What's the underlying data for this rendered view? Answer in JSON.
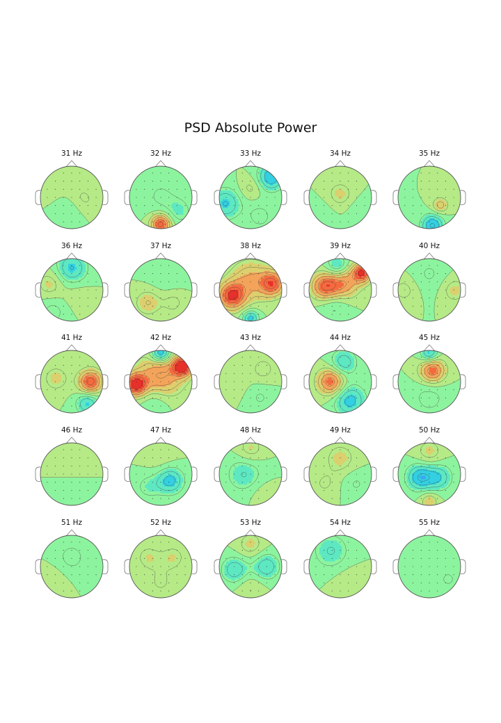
{
  "figure": {
    "title": "PSD Absolute Power"
  },
  "chart_data": {
    "type": "heatmap",
    "title": "PSD Absolute Power",
    "plot_kind": "EEG scalp topographic maps",
    "colormap": "rainbow (blue = low, green = mid, red = high)",
    "layout": {
      "rows": 5,
      "cols": 5
    },
    "value_scale": "relative 0-1 (no colorbar shown)",
    "panels": [
      {
        "label": "31 Hz",
        "freq": 31,
        "blobs": [
          {
            "x": 0.3,
            "y": -0.1,
            "v": 0.62,
            "s": 0.35
          },
          {
            "x": 0.0,
            "y": -0.35,
            "v": 0.4,
            "s": 0.35
          },
          {
            "x": -0.6,
            "y": 0.2,
            "v": 0.53,
            "s": 0.3
          }
        ]
      },
      {
        "label": "32 Hz",
        "freq": 32,
        "blobs": [
          {
            "x": 0.0,
            "y": -0.85,
            "v": 0.9,
            "s": 0.22
          },
          {
            "x": 0.0,
            "y": 0.05,
            "v": 0.42,
            "s": 0.45
          },
          {
            "x": 0.6,
            "y": -0.45,
            "v": 0.4,
            "s": 0.3
          }
        ]
      },
      {
        "label": "33 Hz",
        "freq": 33,
        "blobs": [
          {
            "x": 0.65,
            "y": 0.65,
            "v": 0.22,
            "s": 0.3
          },
          {
            "x": -0.8,
            "y": -0.2,
            "v": 0.28,
            "s": 0.35
          },
          {
            "x": 0.0,
            "y": 0.3,
            "v": 0.6,
            "s": 0.25
          },
          {
            "x": 0.3,
            "y": -0.6,
            "v": 0.4,
            "s": 0.3
          }
        ]
      },
      {
        "label": "34 Hz",
        "freq": 34,
        "blobs": [
          {
            "x": 0.0,
            "y": 0.1,
            "v": 0.62,
            "s": 0.3
          },
          {
            "x": -0.6,
            "y": -0.5,
            "v": 0.45,
            "s": 0.3
          },
          {
            "x": 0.6,
            "y": -0.4,
            "v": 0.45,
            "s": 0.3
          }
        ]
      },
      {
        "label": "35 Hz",
        "freq": 35,
        "blobs": [
          {
            "x": 0.1,
            "y": -0.9,
            "v": 0.2,
            "s": 0.25
          },
          {
            "x": 0.35,
            "y": -0.25,
            "v": 0.68,
            "s": 0.18
          }
        ]
      },
      {
        "label": "36 Hz",
        "freq": 36,
        "blobs": [
          {
            "x": 0.0,
            "y": 0.7,
            "v": 0.28,
            "s": 0.35
          },
          {
            "x": -0.7,
            "y": 0.2,
            "v": 0.62,
            "s": 0.3
          },
          {
            "x": 0.2,
            "y": -0.2,
            "v": 0.55,
            "s": 0.3
          },
          {
            "x": -0.6,
            "y": -0.7,
            "v": 0.4,
            "s": 0.3
          }
        ]
      },
      {
        "label": "37 Hz",
        "freq": 37,
        "blobs": [
          {
            "x": -0.4,
            "y": -0.4,
            "v": 0.65,
            "s": 0.3
          },
          {
            "x": 0.4,
            "y": -0.4,
            "v": 0.6,
            "s": 0.25
          },
          {
            "x": 0.1,
            "y": 0.4,
            "v": 0.45,
            "s": 0.4
          }
        ]
      },
      {
        "label": "38 Hz",
        "freq": 38,
        "blobs": [
          {
            "x": -0.6,
            "y": -0.2,
            "v": 0.92,
            "s": 0.3
          },
          {
            "x": 0.7,
            "y": 0.2,
            "v": 0.85,
            "s": 0.28
          },
          {
            "x": 0.0,
            "y": 0.3,
            "v": 0.72,
            "s": 0.45
          },
          {
            "x": 0.0,
            "y": -0.9,
            "v": 0.25,
            "s": 0.18
          }
        ]
      },
      {
        "label": "39 Hz",
        "freq": 39,
        "blobs": [
          {
            "x": -0.5,
            "y": 0.1,
            "v": 0.85,
            "s": 0.3
          },
          {
            "x": 0.7,
            "y": 0.55,
            "v": 0.92,
            "s": 0.22
          },
          {
            "x": 0.1,
            "y": 0.2,
            "v": 0.78,
            "s": 0.35
          },
          {
            "x": -0.1,
            "y": 0.75,
            "v": 0.3,
            "s": 0.25
          },
          {
            "x": -0.2,
            "y": -0.5,
            "v": 0.4,
            "s": 0.35
          }
        ]
      },
      {
        "label": "40 Hz",
        "freq": 40,
        "blobs": [
          {
            "x": -0.8,
            "y": 0.0,
            "v": 0.6,
            "s": 0.3
          },
          {
            "x": 0.8,
            "y": 0.0,
            "v": 0.62,
            "s": 0.3
          },
          {
            "x": 0.0,
            "y": 0.5,
            "v": 0.42,
            "s": 0.4
          }
        ]
      },
      {
        "label": "41 Hz",
        "freq": 41,
        "blobs": [
          {
            "x": 0.6,
            "y": 0.0,
            "v": 0.9,
            "s": 0.26
          },
          {
            "x": 0.5,
            "y": -0.7,
            "v": 0.28,
            "s": 0.25
          },
          {
            "x": -0.5,
            "y": 0.1,
            "v": 0.62,
            "s": 0.3
          }
        ]
      },
      {
        "label": "42 Hz",
        "freq": 42,
        "blobs": [
          {
            "x": -0.8,
            "y": -0.1,
            "v": 0.95,
            "s": 0.25
          },
          {
            "x": 0.7,
            "y": 0.5,
            "v": 0.97,
            "s": 0.22
          },
          {
            "x": 0.0,
            "y": 0.2,
            "v": 0.8,
            "s": 0.5
          },
          {
            "x": 0.0,
            "y": 0.9,
            "v": 0.15,
            "s": 0.22
          },
          {
            "x": -0.2,
            "y": -0.6,
            "v": 0.4,
            "s": 0.35
          }
        ]
      },
      {
        "label": "43 Hz",
        "freq": 43,
        "blobs": [
          {
            "x": 0.4,
            "y": 0.4,
            "v": 0.6,
            "s": 0.3
          },
          {
            "x": -0.5,
            "y": -0.1,
            "v": 0.55,
            "s": 0.3
          },
          {
            "x": 0.3,
            "y": -0.5,
            "v": 0.42,
            "s": 0.3
          }
        ]
      },
      {
        "label": "44 Hz",
        "freq": 44,
        "blobs": [
          {
            "x": -0.3,
            "y": 0.0,
            "v": 0.85,
            "s": 0.3
          },
          {
            "x": 0.3,
            "y": -0.6,
            "v": 0.25,
            "s": 0.35
          },
          {
            "x": 0.1,
            "y": 0.6,
            "v": 0.3,
            "s": 0.3
          }
        ]
      },
      {
        "label": "45 Hz",
        "freq": 45,
        "blobs": [
          {
            "x": 0.1,
            "y": 0.35,
            "v": 0.85,
            "s": 0.28
          },
          {
            "x": 0.0,
            "y": 0.9,
            "v": 0.25,
            "s": 0.2
          },
          {
            "x": 0.0,
            "y": -0.5,
            "v": 0.4,
            "s": 0.4
          }
        ]
      },
      {
        "label": "46 Hz",
        "freq": 46,
        "blobs": [
          {
            "x": 0.0,
            "y": 0.3,
            "v": 0.58,
            "s": 0.35
          },
          {
            "x": 0.0,
            "y": -0.3,
            "v": 0.45,
            "s": 0.35
          }
        ]
      },
      {
        "label": "47 Hz",
        "freq": 47,
        "blobs": [
          {
            "x": 0.3,
            "y": -0.2,
            "v": 0.25,
            "s": 0.3
          },
          {
            "x": -0.4,
            "y": -0.4,
            "v": 0.4,
            "s": 0.3
          },
          {
            "x": 0.0,
            "y": 0.5,
            "v": 0.55,
            "s": 0.35
          }
        ]
      },
      {
        "label": "48 Hz",
        "freq": 48,
        "blobs": [
          {
            "x": -0.2,
            "y": 0.0,
            "v": 0.35,
            "s": 0.4
          },
          {
            "x": 0.0,
            "y": 0.8,
            "v": 0.62,
            "s": 0.3
          },
          {
            "x": 0.4,
            "y": -0.6,
            "v": 0.55,
            "s": 0.3
          }
        ]
      },
      {
        "label": "49 Hz",
        "freq": 49,
        "blobs": [
          {
            "x": 0.0,
            "y": 0.5,
            "v": 0.62,
            "s": 0.35
          },
          {
            "x": -0.5,
            "y": -0.3,
            "v": 0.58,
            "s": 0.3
          },
          {
            "x": 0.5,
            "y": -0.3,
            "v": 0.42,
            "s": 0.3
          }
        ]
      },
      {
        "label": "50 Hz",
        "freq": 50,
        "blobs": [
          {
            "x": -0.3,
            "y": -0.1,
            "v": 0.22,
            "s": 0.3
          },
          {
            "x": 0.3,
            "y": -0.1,
            "v": 0.3,
            "s": 0.3
          },
          {
            "x": 0.0,
            "y": 0.7,
            "v": 0.62,
            "s": 0.3
          },
          {
            "x": 0.0,
            "y": -0.85,
            "v": 0.65,
            "s": 0.2
          }
        ]
      },
      {
        "label": "51 Hz",
        "freq": 51,
        "blobs": [
          {
            "x": 0.0,
            "y": 0.3,
            "v": 0.4,
            "s": 0.35
          },
          {
            "x": -0.6,
            "y": -0.4,
            "v": 0.55,
            "s": 0.3
          },
          {
            "x": 0.4,
            "y": -0.5,
            "v": 0.5,
            "s": 0.3
          }
        ]
      },
      {
        "label": "52 Hz",
        "freq": 52,
        "blobs": [
          {
            "x": -0.4,
            "y": 0.3,
            "v": 0.6,
            "s": 0.3
          },
          {
            "x": 0.4,
            "y": 0.3,
            "v": 0.6,
            "s": 0.3
          },
          {
            "x": 0.0,
            "y": -0.5,
            "v": 0.58,
            "s": 0.35
          }
        ]
      },
      {
        "label": "53 Hz",
        "freq": 53,
        "blobs": [
          {
            "x": -0.5,
            "y": -0.1,
            "v": 0.3,
            "s": 0.3
          },
          {
            "x": 0.5,
            "y": 0.0,
            "v": 0.3,
            "s": 0.3
          },
          {
            "x": 0.0,
            "y": 0.7,
            "v": 0.62,
            "s": 0.3
          },
          {
            "x": 0.0,
            "y": -0.7,
            "v": 0.58,
            "s": 0.3
          }
        ]
      },
      {
        "label": "54 Hz",
        "freq": 54,
        "blobs": [
          {
            "x": -0.3,
            "y": 0.5,
            "v": 0.35,
            "s": 0.4
          },
          {
            "x": 0.3,
            "y": -0.5,
            "v": 0.55,
            "s": 0.35
          }
        ]
      },
      {
        "label": "55 Hz",
        "freq": 55,
        "blobs": [
          {
            "x": -0.2,
            "y": 0.2,
            "v": 0.5,
            "s": 0.4
          },
          {
            "x": 0.6,
            "y": -0.4,
            "v": 0.42,
            "s": 0.3
          }
        ]
      }
    ]
  }
}
